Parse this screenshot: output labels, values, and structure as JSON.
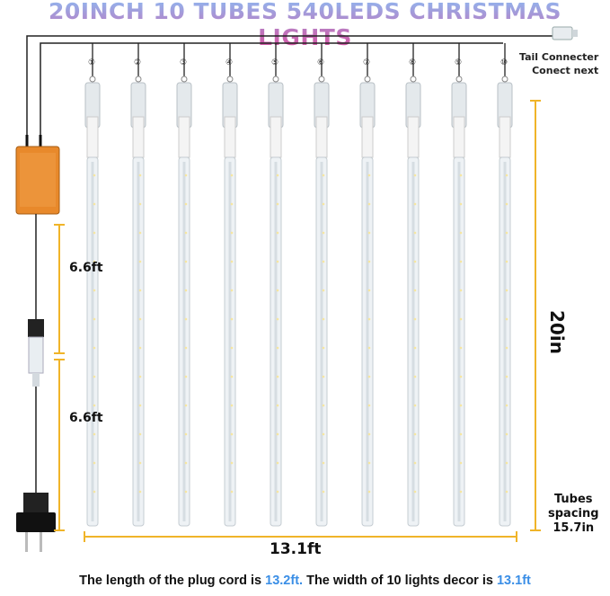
{
  "title": "20INCH 10 TUBES 540LEDS CHRISTMAS LIGHTS",
  "tube_numbers": [
    "①",
    "②",
    "③",
    "④",
    "⑤",
    "⑥",
    "⑦",
    "⑧",
    "⑨",
    "⑩"
  ],
  "tail_connector": {
    "line1": "Tail Connecter",
    "line2": "Conect next"
  },
  "dimensions": {
    "tube_length": "20in",
    "cord_segment_1": "6.6ft",
    "cord_segment_2": "6.6ft",
    "total_width": "13.1ft",
    "spacing_label_1": "Tubes",
    "spacing_label_2": "spacing",
    "spacing_value": "15.7in"
  },
  "footer": {
    "part1": "The length of the plug cord is ",
    "value1": "13.2ft.",
    "part2": " The width of 10 lights decor is ",
    "value2": "13.1ft"
  },
  "colors": {
    "title_top": "#8fb8f0",
    "title_bottom": "#d94fa0",
    "dimension_lines": "#f0b429",
    "highlight": "#3a8ee6",
    "controller": "#e8892b"
  }
}
